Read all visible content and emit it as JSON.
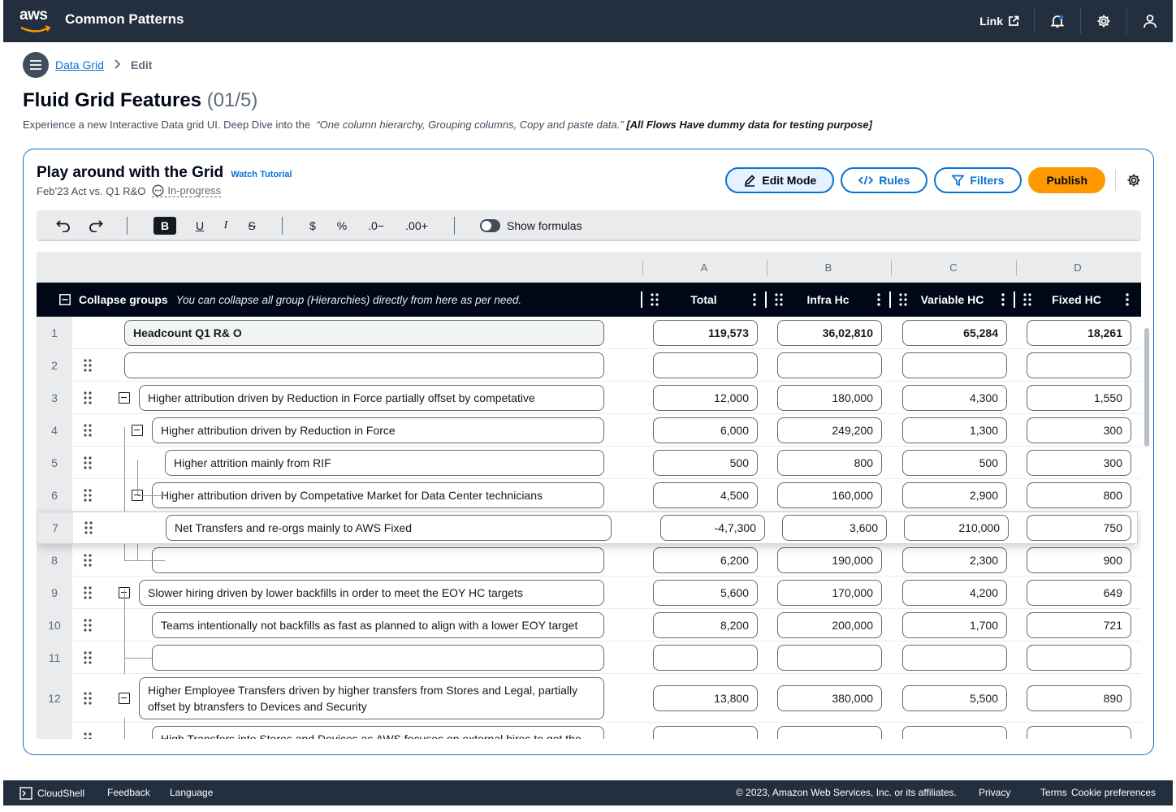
{
  "topbar": {
    "logo_text": "aws",
    "app_title": "Common Patterns",
    "link_label": "Link"
  },
  "breadcrumb": {
    "parent": "Data Grid",
    "current": "Edit"
  },
  "page": {
    "title": "Fluid Grid Features",
    "title_count": "(01/5)",
    "desc_lead": "Experience a new Interactive Data grid UI. Deep Dive into the",
    "desc_quote": "“One column hierarchy, Grouping columns, Copy and paste data.”",
    "desc_note": "[All Flows Have dummy data for testing purpose]"
  },
  "panel": {
    "title": "Play around with the Grid",
    "tutorial_link": "Watch Tutorial",
    "subtitle": "Feb’23 Act vs. Q1 R&O",
    "status": "In-progress",
    "buttons": {
      "edit_mode": "Edit Mode",
      "rules": "Rules",
      "filters": "Filters",
      "publish": "Publish"
    }
  },
  "toolbar": {
    "bold": "B",
    "underline": "U",
    "italic": "I",
    "strike": "S",
    "currency": "$",
    "percent": "%",
    "dec_decrease": ".0−",
    "dec_increase": ".00+",
    "show_formulas": "Show formulas"
  },
  "grid": {
    "col_letters": [
      "A",
      "B",
      "C",
      "D"
    ],
    "collapse_label": "Collapse groups",
    "collapse_hint": "You can collapse all group (Hierarchies) directly from here as per need.",
    "columns": [
      "Total",
      "Infra Hc",
      "Variable HC",
      "Fixed HC"
    ],
    "rows": [
      {
        "n": "1",
        "label": "Headcount Q1 R& O",
        "values": [
          "119,573",
          "36,02,810",
          "65,284",
          "18,261"
        ]
      },
      {
        "n": "2",
        "label": "",
        "values": [
          "",
          "",
          "",
          ""
        ]
      },
      {
        "n": "3",
        "label": "Higher attribution driven by Reduction in Force partially offset by competative",
        "values": [
          "12,000",
          "180,000",
          "4,300",
          "1,550"
        ]
      },
      {
        "n": "4",
        "label": "Higher attribution driven by Reduction in Force",
        "values": [
          "6,000",
          "249,200",
          "1,300",
          "300"
        ]
      },
      {
        "n": "5",
        "label": "Higher attrition mainly from RIF",
        "values": [
          "500",
          "800",
          "500",
          "300"
        ]
      },
      {
        "n": "6",
        "label": "Higher attribution driven by Competative Market for Data Center technicians",
        "values": [
          "4,500",
          "160,000",
          "2,900",
          "800"
        ]
      },
      {
        "n": "7",
        "label": "Net Transfers and re-orgs mainly to AWS Fixed",
        "values": [
          "-4,7,300",
          "3,600",
          "210,000",
          "750"
        ]
      },
      {
        "n": "8",
        "label": "",
        "values": [
          "6,200",
          "190,000",
          "2,300",
          "900"
        ]
      },
      {
        "n": "9",
        "label": "Slower hiring driven by lower backfills in order to meet the EOY HC targets",
        "values": [
          "5,600",
          "170,000",
          "4,200",
          "649"
        ]
      },
      {
        "n": "10",
        "label": "Teams intentionally not backfills as fast as planned to align with a lower EOY target",
        "values": [
          "8,200",
          "200,000",
          "1,700",
          "721"
        ]
      },
      {
        "n": "11",
        "label": "",
        "values": [
          "",
          "",
          "",
          ""
        ]
      },
      {
        "n": "12",
        "label": "Higher Employee Transfers driven by higher transfers from Stores and Legal, partially offset by btransfers to Devices and Security",
        "values": [
          "13,800",
          "380,000",
          "5,500",
          "890"
        ]
      },
      {
        "n": "",
        "label": "High Transfers into Stores and Devices as AWS focuses on external hires to get the",
        "values": [
          "",
          "",
          "",
          ""
        ]
      }
    ]
  },
  "footer": {
    "cloudshell": "CloudShell",
    "feedback": "Feedback",
    "language": "Language",
    "copyright": "© 2023, Amazon Web Services, Inc. or its affiliates.",
    "privacy": "Privacy",
    "terms": "Terms",
    "cookies": "Cookie preferences"
  },
  "colors": {
    "nav_bg": "#232f3e",
    "accent": "#0972d3",
    "publish": "#ff9900",
    "header_bg": "#000716"
  }
}
